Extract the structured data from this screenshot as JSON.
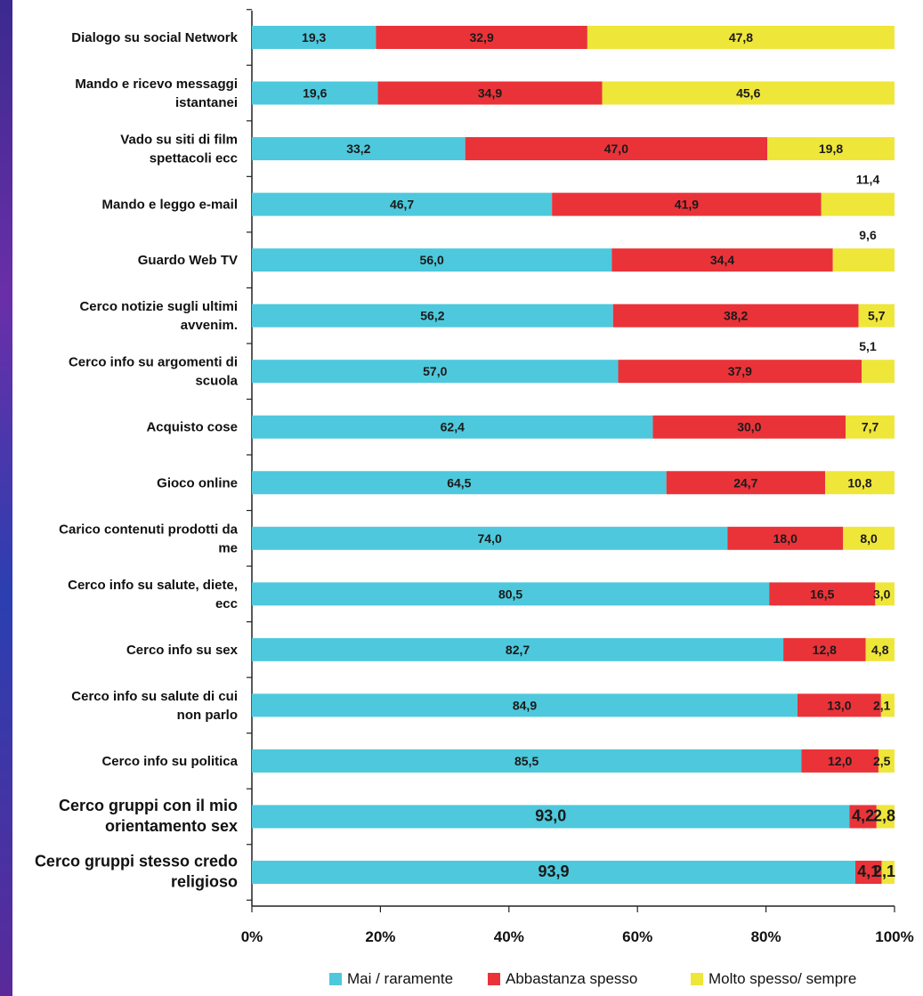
{
  "chart_data": {
    "type": "bar",
    "orientation": "horizontal",
    "stacked": true,
    "categories": [
      [
        "Dialogo su social Network"
      ],
      [
        "Mando e ricevo messaggi",
        "istantanei"
      ],
      [
        "Vado su siti di film",
        "spettacoli ecc"
      ],
      [
        "Mando e leggo e-mail"
      ],
      [
        "Guardo Web TV"
      ],
      [
        "Cerco notizie sugli ultimi",
        "avvenim."
      ],
      [
        "Cerco info su argomenti di",
        "scuola"
      ],
      [
        "Acquisto cose"
      ],
      [
        "Gioco online"
      ],
      [
        "Carico contenuti prodotti da",
        "me"
      ],
      [
        "Cerco info su salute, diete,",
        "ecc"
      ],
      [
        "Cerco info su sex"
      ],
      [
        "Cerco info su salute di cui",
        "non parlo"
      ],
      [
        "Cerco info su politica"
      ],
      [
        "Cerco gruppi con il mio",
        "orientamento sex"
      ],
      [
        "Cerco gruppi stesso credo",
        "religioso"
      ]
    ],
    "series": [
      {
        "name": "Mai / raramente",
        "color": "#4ec8dc",
        "values": [
          19.3,
          19.6,
          33.2,
          46.7,
          56.0,
          56.2,
          57.0,
          62.4,
          64.5,
          74.0,
          80.5,
          82.7,
          84.9,
          85.5,
          93.0,
          93.9
        ],
        "labels": [
          "19,3",
          "19,6",
          "33,2",
          "46,7",
          "56,0",
          "56,2",
          "57,0",
          "62,4",
          "64,5",
          "74,0",
          "80,5",
          "82,7",
          "84,9",
          "85,5",
          "93,0",
          "93,9"
        ]
      },
      {
        "name": "Abbastanza spesso",
        "color": "#e93339",
        "values": [
          32.9,
          34.9,
          47.0,
          41.9,
          34.4,
          38.2,
          37.9,
          30.0,
          24.7,
          18.0,
          16.5,
          12.8,
          13.0,
          12.0,
          4.2,
          4.1
        ],
        "labels": [
          "32,9",
          "34,9",
          "47,0",
          "41,9",
          "34,4",
          "38,2",
          "37,9",
          "30,0",
          "24,7",
          "18,0",
          "16,5",
          "12,8",
          "13,0",
          "12,0",
          "4,2",
          "4,1"
        ]
      },
      {
        "name": "Molto spesso/ sempre",
        "color": "#efe63a",
        "values": [
          47.8,
          45.6,
          19.8,
          11.4,
          9.6,
          5.7,
          5.1,
          7.7,
          10.8,
          8.0,
          3.0,
          4.8,
          2.1,
          2.5,
          2.8,
          2.1
        ],
        "labels": [
          "47,8",
          "45,6",
          "19,8",
          "11,4",
          "9,6",
          "5,7",
          "5,1",
          "7,7",
          "10,8",
          "8,0",
          "3,0",
          "4,8",
          "2,1",
          "2,5",
          "2,8",
          "2,1"
        ],
        "label_outside": [
          false,
          false,
          false,
          true,
          true,
          false,
          true,
          false,
          false,
          false,
          false,
          false,
          false,
          false,
          false,
          false
        ]
      }
    ],
    "xlim": [
      0,
      100
    ],
    "x_ticks": [
      "0%",
      "20%",
      "40%",
      "60%",
      "80%",
      "100%"
    ],
    "grid": false,
    "legend_position": "bottom"
  }
}
